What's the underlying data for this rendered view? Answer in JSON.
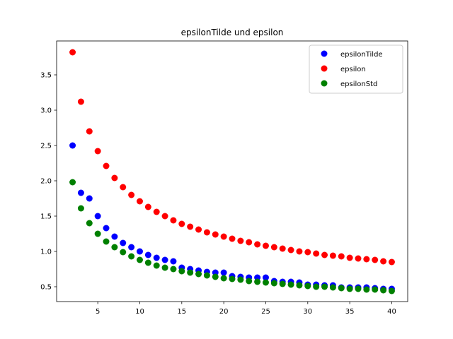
{
  "chart_data": {
    "type": "scatter",
    "title": "epsilonTilde und epsilon",
    "xlabel": "",
    "ylabel": "",
    "xlim": [
      0.1,
      41.9
    ],
    "ylim": [
      0.29,
      3.98
    ],
    "xticks": [
      5,
      10,
      15,
      20,
      25,
      30,
      35,
      40
    ],
    "yticks": [
      0.5,
      1.0,
      1.5,
      2.0,
      2.5,
      3.0,
      3.5
    ],
    "legend_position": "top-right",
    "grid": false,
    "x": [
      2,
      3,
      4,
      5,
      6,
      7,
      8,
      9,
      10,
      11,
      12,
      13,
      14,
      15,
      16,
      17,
      18,
      19,
      20,
      21,
      22,
      23,
      24,
      25,
      26,
      27,
      28,
      29,
      30,
      31,
      32,
      33,
      34,
      35,
      36,
      37,
      38,
      39,
      40
    ],
    "series": [
      {
        "name": "epsilonTilde",
        "color": "#0000ff",
        "values": [
          2.5,
          1.83,
          1.75,
          1.5,
          1.33,
          1.21,
          1.12,
          1.06,
          1.0,
          0.95,
          0.91,
          0.88,
          0.86,
          0.77,
          0.75,
          0.73,
          0.71,
          0.7,
          0.7,
          0.65,
          0.64,
          0.63,
          0.63,
          0.63,
          0.58,
          0.57,
          0.57,
          0.56,
          0.53,
          0.53,
          0.52,
          0.52,
          0.49,
          0.49,
          0.49,
          0.49,
          0.48,
          0.47,
          0.47
        ]
      },
      {
        "name": "epsilon",
        "color": "#ff0000",
        "values": [
          3.82,
          3.12,
          2.7,
          2.42,
          2.21,
          2.04,
          1.91,
          1.8,
          1.71,
          1.63,
          1.56,
          1.5,
          1.44,
          1.39,
          1.35,
          1.31,
          1.27,
          1.24,
          1.21,
          1.18,
          1.15,
          1.13,
          1.1,
          1.08,
          1.06,
          1.04,
          1.02,
          1.0,
          0.99,
          0.97,
          0.95,
          0.94,
          0.93,
          0.91,
          0.9,
          0.89,
          0.88,
          0.86,
          0.85
        ]
      },
      {
        "name": "epsilonStd",
        "color": "#008000",
        "values": [
          1.98,
          1.61,
          1.4,
          1.25,
          1.14,
          1.06,
          0.99,
          0.93,
          0.88,
          0.84,
          0.8,
          0.77,
          0.75,
          0.72,
          0.7,
          0.68,
          0.66,
          0.64,
          0.62,
          0.61,
          0.6,
          0.58,
          0.57,
          0.56,
          0.55,
          0.54,
          0.53,
          0.52,
          0.51,
          0.5,
          0.5,
          0.49,
          0.48,
          0.47,
          0.47,
          0.46,
          0.46,
          0.45,
          0.44
        ]
      }
    ]
  }
}
